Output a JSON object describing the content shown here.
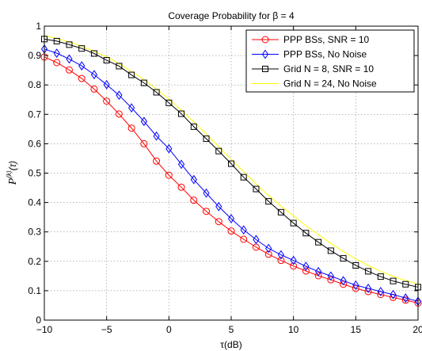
{
  "chart_data": {
    "type": "line",
    "title_prefix": "Coverage Probability for ",
    "title_symbol": "β",
    "title_suffix": " = 4",
    "xlabel_main": "τ",
    "xlabel_unit": "(dB)",
    "ylabel_main": "P",
    "ylabel_sup": "(k)",
    "ylabel_arg": "(τ)",
    "xlim": [
      -10,
      20
    ],
    "ylim": [
      0,
      1
    ],
    "xticks": [
      -10,
      -5,
      0,
      5,
      10,
      15,
      20
    ],
    "xtick_labels": [
      "−10",
      "−5",
      "0",
      "5",
      "10",
      "15",
      "20"
    ],
    "yticks": [
      0,
      0.1,
      0.2,
      0.3,
      0.4,
      0.5,
      0.6,
      0.7,
      0.8,
      0.9,
      1
    ],
    "ytick_labels": [
      "0",
      "0.1",
      "0.2",
      "0.3",
      "0.4",
      "0.5",
      "0.6",
      "0.7",
      "0.8",
      "0.9",
      "1"
    ],
    "grid": true,
    "legend_position": "top-right",
    "x": [
      -10,
      -9,
      -8,
      -7,
      -6,
      -5,
      -4,
      -3,
      -2,
      -1,
      0,
      1,
      2,
      3,
      4,
      5,
      6,
      7,
      8,
      9,
      10,
      11,
      12,
      13,
      14,
      15,
      16,
      17,
      18,
      19,
      20
    ],
    "series": [
      {
        "name": "PPP BSs, SNR = 10",
        "color": "#ff0000",
        "marker": "circle",
        "values": [
          0.895,
          0.876,
          0.851,
          0.822,
          0.786,
          0.745,
          0.701,
          0.653,
          0.6,
          0.541,
          0.493,
          0.452,
          0.408,
          0.37,
          0.335,
          0.303,
          0.275,
          0.248,
          0.224,
          0.203,
          0.184,
          0.167,
          0.151,
          0.137,
          0.122,
          0.108,
          0.097,
          0.087,
          0.077,
          0.068,
          0.058
        ]
      },
      {
        "name": "PPP BSs, No Noise",
        "color": "#0000ff",
        "marker": "diamond",
        "values": [
          0.922,
          0.908,
          0.888,
          0.865,
          0.835,
          0.801,
          0.765,
          0.722,
          0.676,
          0.626,
          0.583,
          0.53,
          0.478,
          0.432,
          0.386,
          0.345,
          0.307,
          0.274,
          0.244,
          0.222,
          0.203,
          0.183,
          0.165,
          0.15,
          0.134,
          0.119,
          0.108,
          0.097,
          0.087,
          0.075,
          0.064
        ]
      },
      {
        "name": "Grid N = 8, SNR = 10",
        "color": "#000000",
        "marker": "square",
        "values": [
          0.956,
          0.949,
          0.937,
          0.924,
          0.907,
          0.884,
          0.864,
          0.834,
          0.807,
          0.775,
          0.739,
          0.702,
          0.658,
          0.617,
          0.575,
          0.532,
          0.486,
          0.446,
          0.404,
          0.367,
          0.33,
          0.296,
          0.265,
          0.236,
          0.21,
          0.186,
          0.166,
          0.148,
          0.133,
          0.122,
          0.112
        ]
      },
      {
        "name": "Grid N = 24, No Noise",
        "color": "#ffff00",
        "marker": "none",
        "values": [
          0.968,
          0.958,
          0.946,
          0.932,
          0.914,
          0.896,
          0.872,
          0.846,
          0.818,
          0.786,
          0.752,
          0.714,
          0.675,
          0.633,
          0.59,
          0.547,
          0.505,
          0.463,
          0.424,
          0.388,
          0.355,
          0.321,
          0.291,
          0.261,
          0.233,
          0.208,
          0.186,
          0.166,
          0.149,
          0.135,
          0.122
        ]
      }
    ]
  }
}
